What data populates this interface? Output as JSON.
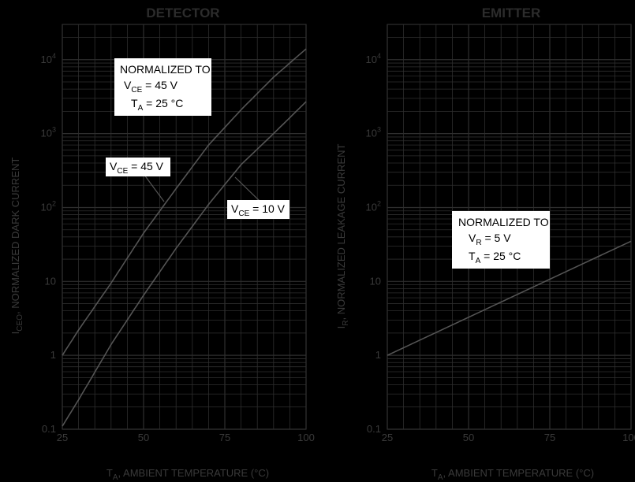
{
  "colors": {
    "background": "#000000",
    "grid": "#2e2e2e",
    "curve": "#555555",
    "text": "#3a3a3a",
    "box": "#ffffff"
  },
  "chart_data": [
    {
      "type": "line",
      "title": "DETECTOR",
      "xlabel": {
        "main": "T",
        "sub": "A",
        "rest": ", AMBIENT TEMPERATURE (°C)"
      },
      "ylabel": {
        "main": "I",
        "sub": "CEO",
        "rest": ", NORMALIZED DARK CURRENT"
      },
      "xlim": [
        25,
        100
      ],
      "ylim": [
        0.1,
        30000
      ],
      "yscale": "log",
      "grid": true,
      "x_ticks": [
        "25",
        "50",
        "75",
        "100"
      ],
      "y_ticks": [
        {
          "value": 0.1,
          "base": "0.1",
          "exp": ""
        },
        {
          "value": 1,
          "base": "1",
          "exp": ""
        },
        {
          "value": 10,
          "base": "10",
          "exp": ""
        },
        {
          "value": 100,
          "base": "10",
          "exp": "2"
        },
        {
          "value": 1000,
          "base": "10",
          "exp": "3"
        },
        {
          "value": 10000,
          "base": "10",
          "exp": "4"
        }
      ],
      "series": [
        {
          "label": {
            "main": "V",
            "sub": "CE",
            "rest": " = 45 V"
          },
          "x": [
            25,
            30,
            40,
            50,
            60,
            70,
            80,
            90,
            100
          ],
          "y": [
            1,
            2.2,
            9.5,
            45,
            180,
            700,
            2100,
            5800,
            14000
          ]
        },
        {
          "label": {
            "main": "V",
            "sub": "CE",
            "rest": " = 10 V"
          },
          "x": [
            25,
            30,
            40,
            50,
            60,
            70,
            80,
            90,
            100
          ],
          "y": [
            0.11,
            0.25,
            1.4,
            6.5,
            28,
            110,
            380,
            1000,
            2700
          ]
        }
      ],
      "annotation": {
        "line1": "NORMALIZED TO",
        "line2": {
          "main": "V",
          "sub": "CE",
          "rest": " = 45 V"
        },
        "line3": {
          "main": "T",
          "sub": "A",
          "rest": " = 25 °C"
        }
      }
    },
    {
      "type": "line",
      "title": "EMITTER",
      "xlabel": {
        "main": "T",
        "sub": "A",
        "rest": ", AMBIENT TEMPERATURE (°C)"
      },
      "ylabel": {
        "main": "I",
        "sub": "R",
        "rest": ", NORMALIZED LEAKAGE CURRENT"
      },
      "xlim": [
        25,
        100
      ],
      "ylim": [
        0.1,
        30000
      ],
      "yscale": "log",
      "grid": true,
      "x_ticks": [
        "25",
        "50",
        "75",
        "100"
      ],
      "y_ticks": [
        {
          "value": 0.1,
          "base": "0.1",
          "exp": ""
        },
        {
          "value": 1,
          "base": "1",
          "exp": ""
        },
        {
          "value": 10,
          "base": "10",
          "exp": ""
        },
        {
          "value": 100,
          "base": "10",
          "exp": "2"
        },
        {
          "value": 1000,
          "base": "10",
          "exp": "3"
        },
        {
          "value": 10000,
          "base": "10",
          "exp": "4"
        }
      ],
      "series": [
        {
          "x": [
            25,
            100
          ],
          "y": [
            1,
            35
          ]
        }
      ],
      "annotation": {
        "line1": "NORMALIZED TO",
        "line2": {
          "main": "V",
          "sub": "R",
          "rest": " = 5 V"
        },
        "line3": {
          "main": "T",
          "sub": "A",
          "rest": " = 25 °C"
        }
      }
    }
  ]
}
